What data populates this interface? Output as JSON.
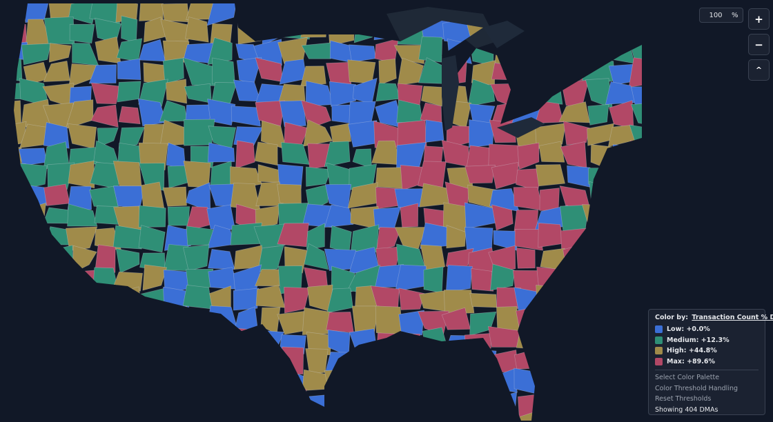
{
  "zoom": {
    "value": "100",
    "unit": "%"
  },
  "controls": {
    "zoom_in": "+",
    "zoom_out": "−",
    "reset": "^"
  },
  "legend": {
    "prefix": "Color by:",
    "metric": "Transaction Count % Diff",
    "items": [
      {
        "label": "Low: +0.0%",
        "color": "#3b6fd6"
      },
      {
        "label": "Medium: +12.3%",
        "color": "#2f8f76"
      },
      {
        "label": "High: +44.8%",
        "color": "#a08b4a"
      },
      {
        "label": "Max: +89.6%",
        "color": "#b24866"
      }
    ],
    "options": [
      "Select Color Palette",
      "Color Threshold Handling",
      "Reset Thresholds"
    ],
    "status": "Showing 404 DMAs"
  }
}
